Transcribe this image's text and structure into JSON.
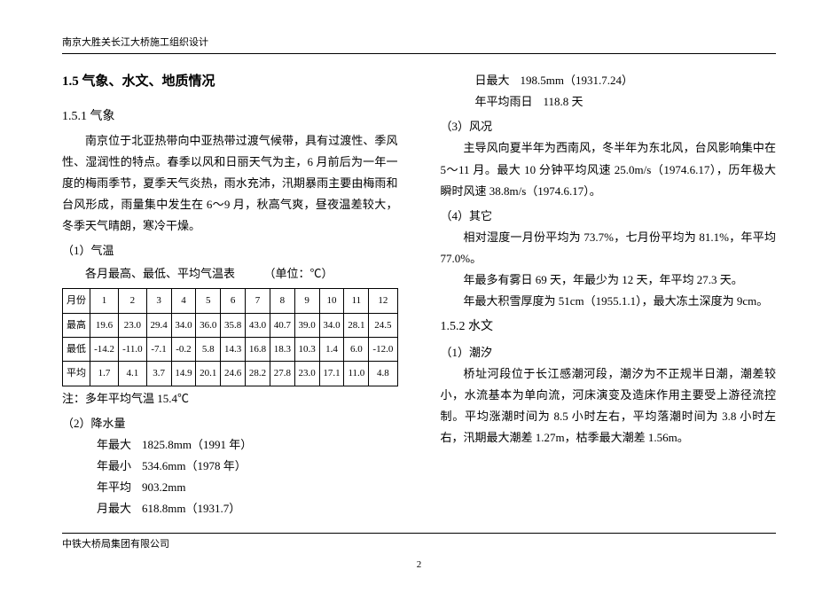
{
  "header": "南京大胜关长江大桥施工组织设计",
  "section_title": "1.5 气象、水文、地质情况",
  "sub1_title": "1.5.1 气象",
  "intro_para": "南京位于北亚热带向中亚热带过渡气候带，具有过渡性、季风性、湿润性的特点。春季以风和日丽天气为主，6 月前后为一年一度的梅雨季节，夏季天气炎热，雨水充沛，汛期暴雨主要由梅雨和台风形成，雨量集中发生在 6～9 月，秋高气爽，昼夜温差较大，冬季天气晴朗，寒冷干燥。",
  "item1_label": "（1）气温",
  "table_caption": "各月最高、最低、平均气温表　　　（单位：℃）",
  "temp_table": {
    "header": [
      "月份",
      "1",
      "2",
      "3",
      "4",
      "5",
      "6",
      "7",
      "8",
      "9",
      "10",
      "11",
      "12"
    ],
    "rows": [
      {
        "label": "最高",
        "cells": [
          "19.6",
          "23.0",
          "29.4",
          "34.0",
          "36.0",
          "35.8",
          "43.0",
          "40.7",
          "39.0",
          "34.0",
          "28.1",
          "24.5"
        ]
      },
      {
        "label": "最低",
        "cells": [
          "-14.2",
          "-11.0",
          "-7.1",
          "-0.2",
          "5.8",
          "14.3",
          "16.8",
          "18.3",
          "10.3",
          "1.4",
          "6.0",
          "-12.0"
        ]
      },
      {
        "label": "平均",
        "cells": [
          "1.7",
          "4.1",
          "3.7",
          "14.9",
          "20.1",
          "24.6",
          "28.2",
          "27.8",
          "23.0",
          "17.1",
          "11.0",
          "4.8"
        ]
      }
    ]
  },
  "table_note": "注：多年平均气温 15.4℃",
  "item2_label": "（2）降水量",
  "precip": [
    {
      "k": "年最大",
      "v": "1825.8mm（1991 年）"
    },
    {
      "k": "年最小",
      "v": "534.6mm（1978 年）"
    },
    {
      "k": "年平均",
      "v": "903.2mm"
    },
    {
      "k": "月最大",
      "v": "618.8mm（1931.7）"
    }
  ],
  "precip_right": [
    {
      "k": "日最大",
      "v": "198.5mm（1931.7.24）"
    },
    {
      "k": "年平均雨日",
      "v": "118.8 天"
    }
  ],
  "item3_label": "（3）风况",
  "wind_para": "主导风向夏半年为西南风，冬半年为东北风，台风影响集中在 5～11 月。最大 10 分钟平均风速 25.0m/s（1974.6.17），历年极大瞬时风速 38.8m/s（1974.6.17）。",
  "item4_label": "（4）其它",
  "other_para1": "相对湿度一月份平均为 73.7%，七月份平均为 81.1%，年平均 77.0%。",
  "other_para2": "年最多有雾日 69 天，年最少为 12 天，年平均 27.3 天。",
  "other_para3": "年最大积雪厚度为 51cm（1955.1.1），最大冻土深度为 9cm。",
  "sub2_title": "1.5.2 水文",
  "hydro_item1": "（1）潮汐",
  "hydro_para": "桥址河段位于长江感潮河段，潮汐为不正规半日潮，潮差较小，水流基本为单向流，河床演变及造床作用主要受上游径流控制。平均涨潮时间为 8.5 小时左右，平均落潮时间为 3.8 小时左右，汛期最大潮差 1.27m，枯季最大潮差 1.56m。",
  "footer_company": "中铁大桥局集团有限公司",
  "page_number": "2"
}
